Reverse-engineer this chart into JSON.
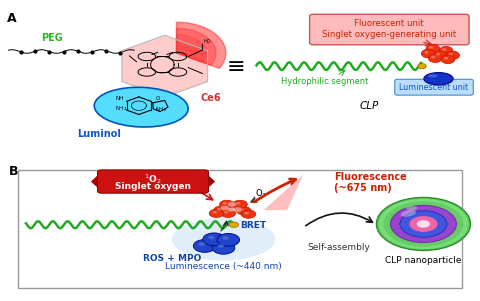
{
  "title_A": "A",
  "title_B": "B",
  "peg_label": "PEG",
  "ce6_label": "Ce6",
  "luminol_label": "Luminol",
  "fluorescent_label": "Fluorescent unit\nSinglet oxygen-generating unit",
  "hydrophilic_label": "Hydrophilic segment",
  "luminescent_label": "Luminescent unit",
  "clp_label": "CLP",
  "singlet_oxygen_label1": "$^1$O$_2$",
  "singlet_oxygen_label2": "Singlet oxygen",
  "fluorescence_label": "Fluorescence\n(~675 nm)",
  "o2_label": "O$_2$",
  "bret_label": "BRET",
  "ros_label": "ROS + MPO",
  "luminescence_label": "Luminescence (~440 nm)",
  "self_assembly_label": "Self-assembly",
  "clp_nanoparticle_label": "CLP nanoparticle",
  "bg_color": "#ffffff",
  "peg_color": "#22bb22",
  "luminol_color": "#1155cc",
  "ce6_label_color": "#cc3333",
  "fluorescent_box_color": "#ffbbbb",
  "fluorescent_text_color": "#cc2200",
  "hydrophilic_color": "#22aa22",
  "luminescent_box_color": "#bbddff",
  "luminescent_text_color": "#1155cc",
  "wave_color": "#22aa22",
  "red_sphere_dark": "#cc1100",
  "red_sphere_mid": "#ee3311",
  "pink_sphere": "#ff8877",
  "dark_blue_sphere": "#1133bb",
  "med_blue_sphere": "#3355dd",
  "singlet_fill": "#cc1111",
  "fluorescence_color": "#cc2200",
  "bret_color": "#1144aa",
  "luminescence_color": "#1144aa",
  "ros_color": "#1144aa",
  "self_assembly_color": "#333333",
  "green_outer": "#44bb44",
  "purple_inner": "#8844bb",
  "blue_inner2": "#3344cc",
  "pink_core": "#ee88aa",
  "white_hot": "#ffffff"
}
